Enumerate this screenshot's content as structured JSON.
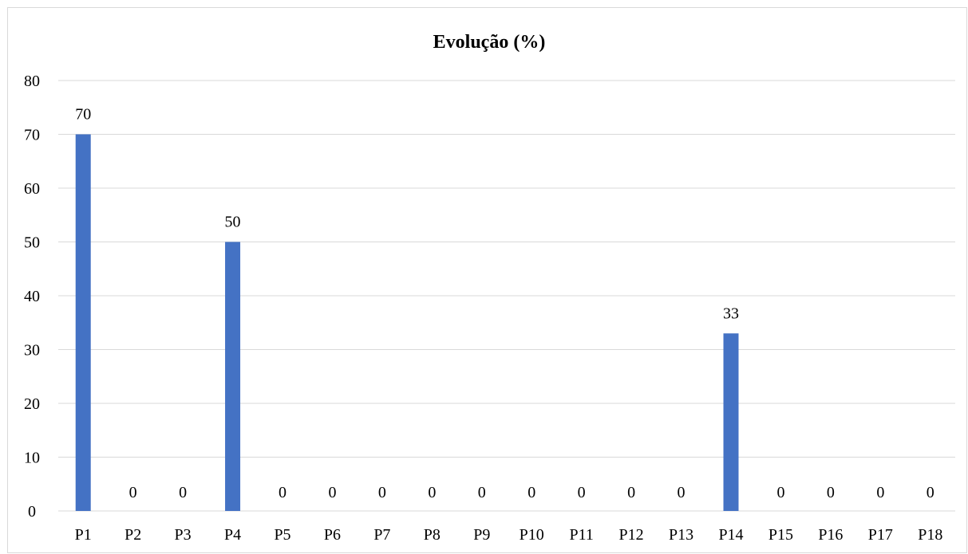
{
  "chart_data": {
    "type": "bar",
    "title": "Evolução (%)",
    "xlabel": "",
    "ylabel": "",
    "categories": [
      "P1",
      "P2",
      "P3",
      "P4",
      "P5",
      "P6",
      "P7",
      "P8",
      "P9",
      "P10",
      "P11",
      "P12",
      "P13",
      "P14",
      "P15",
      "P16",
      "P17",
      "P18"
    ],
    "values": [
      70,
      0,
      0,
      50,
      0,
      0,
      0,
      0,
      0,
      0,
      0,
      0,
      0,
      33,
      0,
      0,
      0,
      0
    ],
    "data_labels": [
      "70",
      "0",
      "0",
      "50",
      "0",
      "0",
      "0",
      "0",
      "0",
      "0",
      "0",
      "0",
      "0",
      "33",
      "0",
      "0",
      "0",
      "0"
    ],
    "yticks": [
      0,
      10,
      20,
      30,
      40,
      50,
      60,
      70,
      80
    ],
    "ylim": [
      0,
      80
    ],
    "grid": true,
    "legend": "none",
    "colors": {
      "bar": "#4472c4",
      "grid": "#d9d9d9",
      "border": "#d9d9d9",
      "text": "#000000"
    }
  }
}
